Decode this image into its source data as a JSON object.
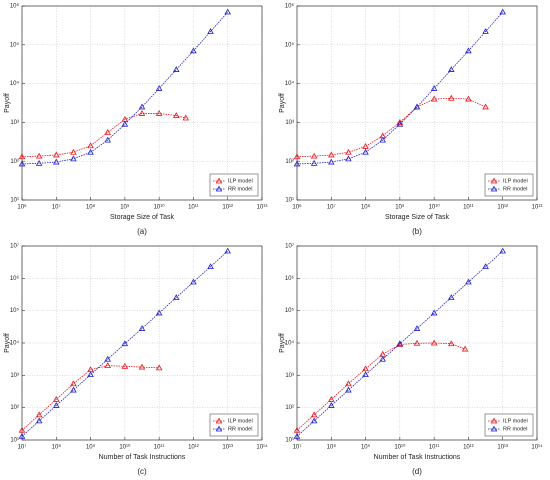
{
  "chart_data": [
    {
      "type": "line",
      "caption": "(a)",
      "x_label": "Storage Size of Task",
      "y_label": "Payoff",
      "xscale": "log",
      "yscale": "log",
      "grid": true,
      "legend": "lower right",
      "xlim": [
        1000000.0,
        10000000000000.0
      ],
      "ylim": [
        10,
        1000000.0
      ],
      "xticks": [
        {
          "value": 1000000.0,
          "label": "10⁶"
        },
        {
          "value": 10000000.0,
          "label": "10⁷"
        },
        {
          "value": 100000000.0,
          "label": "10⁸"
        },
        {
          "value": 1000000000.0,
          "label": "10⁹"
        },
        {
          "value": 10000000000.0,
          "label": "10¹⁰"
        },
        {
          "value": 100000000000.0,
          "label": "10¹¹"
        },
        {
          "value": 1000000000000.0,
          "label": "10¹²"
        },
        {
          "value": 10000000000000.0,
          "label": "10¹³"
        }
      ],
      "yticks": [
        {
          "value": 10,
          "label": "10¹"
        },
        {
          "value": 100,
          "label": "10²"
        },
        {
          "value": 1000,
          "label": "10³"
        },
        {
          "value": 10000,
          "label": "10⁴"
        },
        {
          "value": 100000,
          "label": "10⁵"
        },
        {
          "value": 1000000,
          "label": "10⁶"
        }
      ],
      "series": [
        {
          "name": "ILP model",
          "color": "#e8141b",
          "x": [
            1000000.0,
            3160000.0,
            10000000.0,
            31600000.0,
            100000000.0,
            316000000.0,
            1000000000.0,
            3160000000.0,
            10000000000.0,
            31600000000.0,
            60000000000.0
          ],
          "values": [
            130,
            135,
            145,
            170,
            250,
            550,
            1200,
            1700,
            1700,
            1500,
            1300
          ]
        },
        {
          "name": "RR model",
          "color": "#1f1fc8",
          "x": [
            1000000.0,
            3160000.0,
            10000000.0,
            31600000.0,
            100000000.0,
            316000000.0,
            1000000000.0,
            3160000000.0,
            10000000000.0,
            31600000000.0,
            100000000000.0,
            316000000000.0,
            1000000000000.0
          ],
          "values": [
            85,
            88,
            95,
            115,
            170,
            350,
            900,
            2500,
            7500,
            23000,
            70000,
            220000,
            700000
          ]
        }
      ]
    },
    {
      "type": "line",
      "caption": "(b)",
      "x_label": "Storage Size of Task",
      "y_label": "Payoff",
      "xscale": "log",
      "yscale": "log",
      "grid": true,
      "legend": "lower right",
      "xlim": [
        1000000.0,
        10000000000000.0
      ],
      "ylim": [
        10,
        1000000.0
      ],
      "xticks": [
        {
          "value": 1000000.0,
          "label": "10⁶"
        },
        {
          "value": 10000000.0,
          "label": "10⁷"
        },
        {
          "value": 100000000.0,
          "label": "10⁸"
        },
        {
          "value": 1000000000.0,
          "label": "10⁹"
        },
        {
          "value": 10000000000.0,
          "label": "10¹⁰"
        },
        {
          "value": 100000000000.0,
          "label": "10¹¹"
        },
        {
          "value": 1000000000000.0,
          "label": "10¹²"
        },
        {
          "value": 10000000000000.0,
          "label": "10¹³"
        }
      ],
      "yticks": [
        {
          "value": 10,
          "label": "10¹"
        },
        {
          "value": 100,
          "label": "10²"
        },
        {
          "value": 1000,
          "label": "10³"
        },
        {
          "value": 10000,
          "label": "10⁴"
        },
        {
          "value": 100000,
          "label": "10⁵"
        },
        {
          "value": 1000000,
          "label": "10⁶"
        }
      ],
      "series": [
        {
          "name": "ILP model",
          "color": "#e8141b",
          "x": [
            1000000.0,
            3160000.0,
            10000000.0,
            31600000.0,
            100000000.0,
            316000000.0,
            1000000000.0,
            3160000000.0,
            10000000000.0,
            31600000000.0,
            100000000000.0,
            316000000000.0
          ],
          "values": [
            130,
            135,
            145,
            170,
            240,
            450,
            1000,
            2500,
            4000,
            4200,
            4000,
            2500
          ]
        },
        {
          "name": "RR model",
          "color": "#1f1fc8",
          "x": [
            1000000.0,
            3160000.0,
            10000000.0,
            31600000.0,
            100000000.0,
            316000000.0,
            1000000000.0,
            3160000000.0,
            10000000000.0,
            31600000000.0,
            100000000000.0,
            316000000000.0,
            1000000000000.0
          ],
          "values": [
            85,
            88,
            95,
            115,
            170,
            350,
            900,
            2500,
            7500,
            23000,
            70000,
            220000,
            700000
          ]
        }
      ]
    },
    {
      "type": "line",
      "caption": "(c)",
      "x_label": "Number of Task Instructions",
      "y_label": "Payoff",
      "xscale": "log",
      "yscale": "log",
      "grid": true,
      "legend": "lower right",
      "xlim": [
        10000000.0,
        100000000000000.0
      ],
      "ylim": [
        10,
        10000000.0
      ],
      "xticks": [
        {
          "value": 10000000.0,
          "label": "10⁷"
        },
        {
          "value": 100000000.0,
          "label": "10⁸"
        },
        {
          "value": 1000000000.0,
          "label": "10⁹"
        },
        {
          "value": 10000000000.0,
          "label": "10¹⁰"
        },
        {
          "value": 100000000000.0,
          "label": "10¹¹"
        },
        {
          "value": 1000000000000.0,
          "label": "10¹²"
        },
        {
          "value": 10000000000000.0,
          "label": "10¹³"
        },
        {
          "value": 100000000000000.0,
          "label": "10¹⁴"
        }
      ],
      "yticks": [
        {
          "value": 10,
          "label": "10¹"
        },
        {
          "value": 100,
          "label": "10²"
        },
        {
          "value": 1000,
          "label": "10³"
        },
        {
          "value": 10000,
          "label": "10⁴"
        },
        {
          "value": 100000,
          "label": "10⁵"
        },
        {
          "value": 1000000,
          "label": "10⁶"
        },
        {
          "value": 10000000,
          "label": "10⁷"
        }
      ],
      "series": [
        {
          "name": "ILP model",
          "color": "#e8141b",
          "x": [
            10000000.0,
            31600000.0,
            100000000.0,
            316000000.0,
            1000000000.0,
            3160000000.0,
            10000000000.0,
            31600000000.0,
            100000000000.0
          ],
          "values": [
            20,
            60,
            180,
            550,
            1500,
            2000,
            1900,
            1800,
            1700
          ]
        },
        {
          "name": "RR model",
          "color": "#1f1fc8",
          "x": [
            10000000.0,
            31600000.0,
            100000000.0,
            316000000.0,
            1000000000.0,
            3160000000.0,
            10000000000.0,
            31600000000.0,
            100000000000.0,
            316000000000.0,
            1000000000000.0,
            3160000000000.0,
            10000000000000.0
          ],
          "values": [
            13,
            39,
            117,
            350,
            1050,
            3150,
            9500,
            28000,
            85000,
            255000,
            770000,
            2300000,
            7000000
          ]
        }
      ]
    },
    {
      "type": "line",
      "caption": "(d)",
      "x_label": "Number of Task Instructions",
      "y_label": "Payoff",
      "xscale": "log",
      "yscale": "log",
      "grid": true,
      "legend": "lower right",
      "xlim": [
        10000000.0,
        100000000000000.0
      ],
      "ylim": [
        10,
        10000000.0
      ],
      "xticks": [
        {
          "value": 10000000.0,
          "label": "10⁷"
        },
        {
          "value": 100000000.0,
          "label": "10⁸"
        },
        {
          "value": 1000000000.0,
          "label": "10⁹"
        },
        {
          "value": 10000000000.0,
          "label": "10¹⁰"
        },
        {
          "value": 100000000000.0,
          "label": "10¹¹"
        },
        {
          "value": 1000000000000.0,
          "label": "10¹²"
        },
        {
          "value": 10000000000000.0,
          "label": "10¹³"
        },
        {
          "value": 100000000000000.0,
          "label": "10¹⁴"
        }
      ],
      "yticks": [
        {
          "value": 10,
          "label": "10¹"
        },
        {
          "value": 100,
          "label": "10²"
        },
        {
          "value": 1000,
          "label": "10³"
        },
        {
          "value": 10000,
          "label": "10⁴"
        },
        {
          "value": 100000,
          "label": "10⁵"
        },
        {
          "value": 1000000,
          "label": "10⁶"
        },
        {
          "value": 10000000,
          "label": "10⁷"
        }
      ],
      "series": [
        {
          "name": "ILP model",
          "color": "#e8141b",
          "x": [
            10000000.0,
            31600000.0,
            100000000.0,
            316000000.0,
            1000000000.0,
            3160000000.0,
            10000000000.0,
            31600000000.0,
            100000000000.0,
            316000000000.0,
            800000000000.0
          ],
          "values": [
            20,
            60,
            180,
            550,
            1600,
            4500,
            9000,
            9800,
            10000,
            9500,
            6500
          ]
        },
        {
          "name": "RR model",
          "color": "#1f1fc8",
          "x": [
            10000000.0,
            31600000.0,
            100000000.0,
            316000000.0,
            1000000000.0,
            3160000000.0,
            10000000000.0,
            31600000000.0,
            100000000000.0,
            316000000000.0,
            1000000000000.0,
            3160000000000.0,
            10000000000000.0
          ],
          "values": [
            13,
            39,
            117,
            350,
            1050,
            3150,
            9500,
            28000,
            85000,
            255000,
            770000,
            2300000,
            7000000
          ]
        }
      ]
    }
  ]
}
